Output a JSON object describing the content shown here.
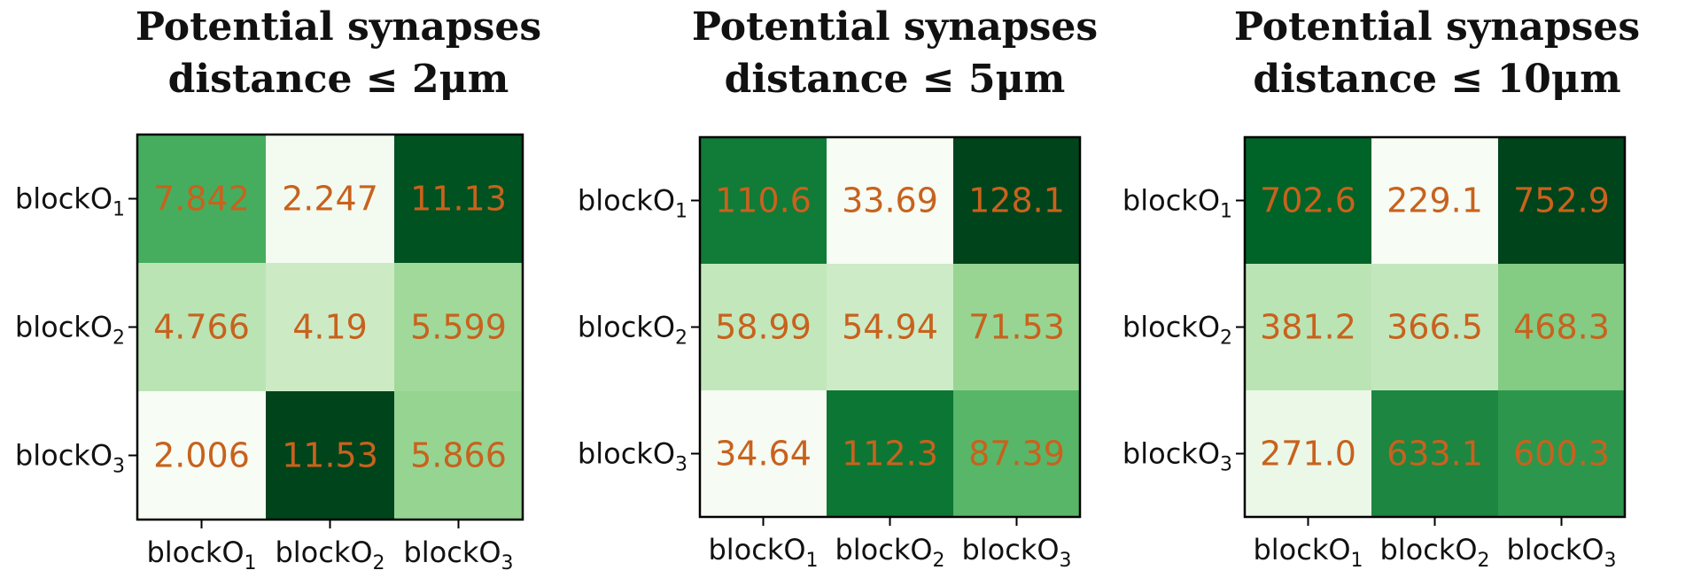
{
  "chart_data": [
    {
      "type": "heatmap",
      "title_line1": "Potential synapses",
      "title_line2": "distance ≤ 2μm",
      "row_labels": [
        {
          "base": "blockO",
          "sub": "1"
        },
        {
          "base": "blockO",
          "sub": "2"
        },
        {
          "base": "blockO",
          "sub": "3"
        }
      ],
      "col_labels": [
        {
          "base": "blockO",
          "sub": "1"
        },
        {
          "base": "blockO",
          "sub": "2"
        },
        {
          "base": "blockO",
          "sub": "3"
        }
      ],
      "values": [
        [
          7.842,
          2.247,
          11.13
        ],
        [
          4.766,
          4.19,
          5.599
        ],
        [
          2.006,
          11.53,
          5.866
        ]
      ],
      "value_labels": [
        [
          "7.842",
          "2.247",
          "11.13"
        ],
        [
          "4.766",
          "4.19",
          "5.599"
        ],
        [
          "2.006",
          "11.53",
          "5.866"
        ]
      ],
      "colormap": "Greens",
      "annotation_color": "#c8621d"
    },
    {
      "type": "heatmap",
      "title_line1": "Potential synapses",
      "title_line2": "distance ≤ 5μm",
      "row_labels": [
        {
          "base": "blockO",
          "sub": "1"
        },
        {
          "base": "blockO",
          "sub": "2"
        },
        {
          "base": "blockO",
          "sub": "3"
        }
      ],
      "col_labels": [
        {
          "base": "blockO",
          "sub": "1"
        },
        {
          "base": "blockO",
          "sub": "2"
        },
        {
          "base": "blockO",
          "sub": "3"
        }
      ],
      "values": [
        [
          110.6,
          33.69,
          128.1
        ],
        [
          58.99,
          54.94,
          71.53
        ],
        [
          34.64,
          112.3,
          87.39
        ]
      ],
      "value_labels": [
        [
          "110.6",
          "33.69",
          "128.1"
        ],
        [
          "58.99",
          "54.94",
          "71.53"
        ],
        [
          "34.64",
          "112.3",
          "87.39"
        ]
      ],
      "colormap": "Greens",
      "annotation_color": "#c8621d"
    },
    {
      "type": "heatmap",
      "title_line1": "Potential synapses",
      "title_line2": "distance ≤ 10μm",
      "row_labels": [
        {
          "base": "blockO",
          "sub": "1"
        },
        {
          "base": "blockO",
          "sub": "2"
        },
        {
          "base": "blockO",
          "sub": "3"
        }
      ],
      "col_labels": [
        {
          "base": "blockO",
          "sub": "1"
        },
        {
          "base": "blockO",
          "sub": "2"
        },
        {
          "base": "blockO",
          "sub": "3"
        }
      ],
      "values": [
        [
          702.6,
          229.1,
          752.9
        ],
        [
          381.2,
          366.5,
          468.3
        ],
        [
          271.0,
          633.1,
          600.3
        ]
      ],
      "value_labels": [
        [
          "702.6",
          "229.1",
          "752.9"
        ],
        [
          "381.2",
          "366.5",
          "468.3"
        ],
        [
          "271.0",
          "633.1",
          "600.3"
        ]
      ],
      "colormap": "Greens",
      "annotation_color": "#c8621d"
    }
  ]
}
